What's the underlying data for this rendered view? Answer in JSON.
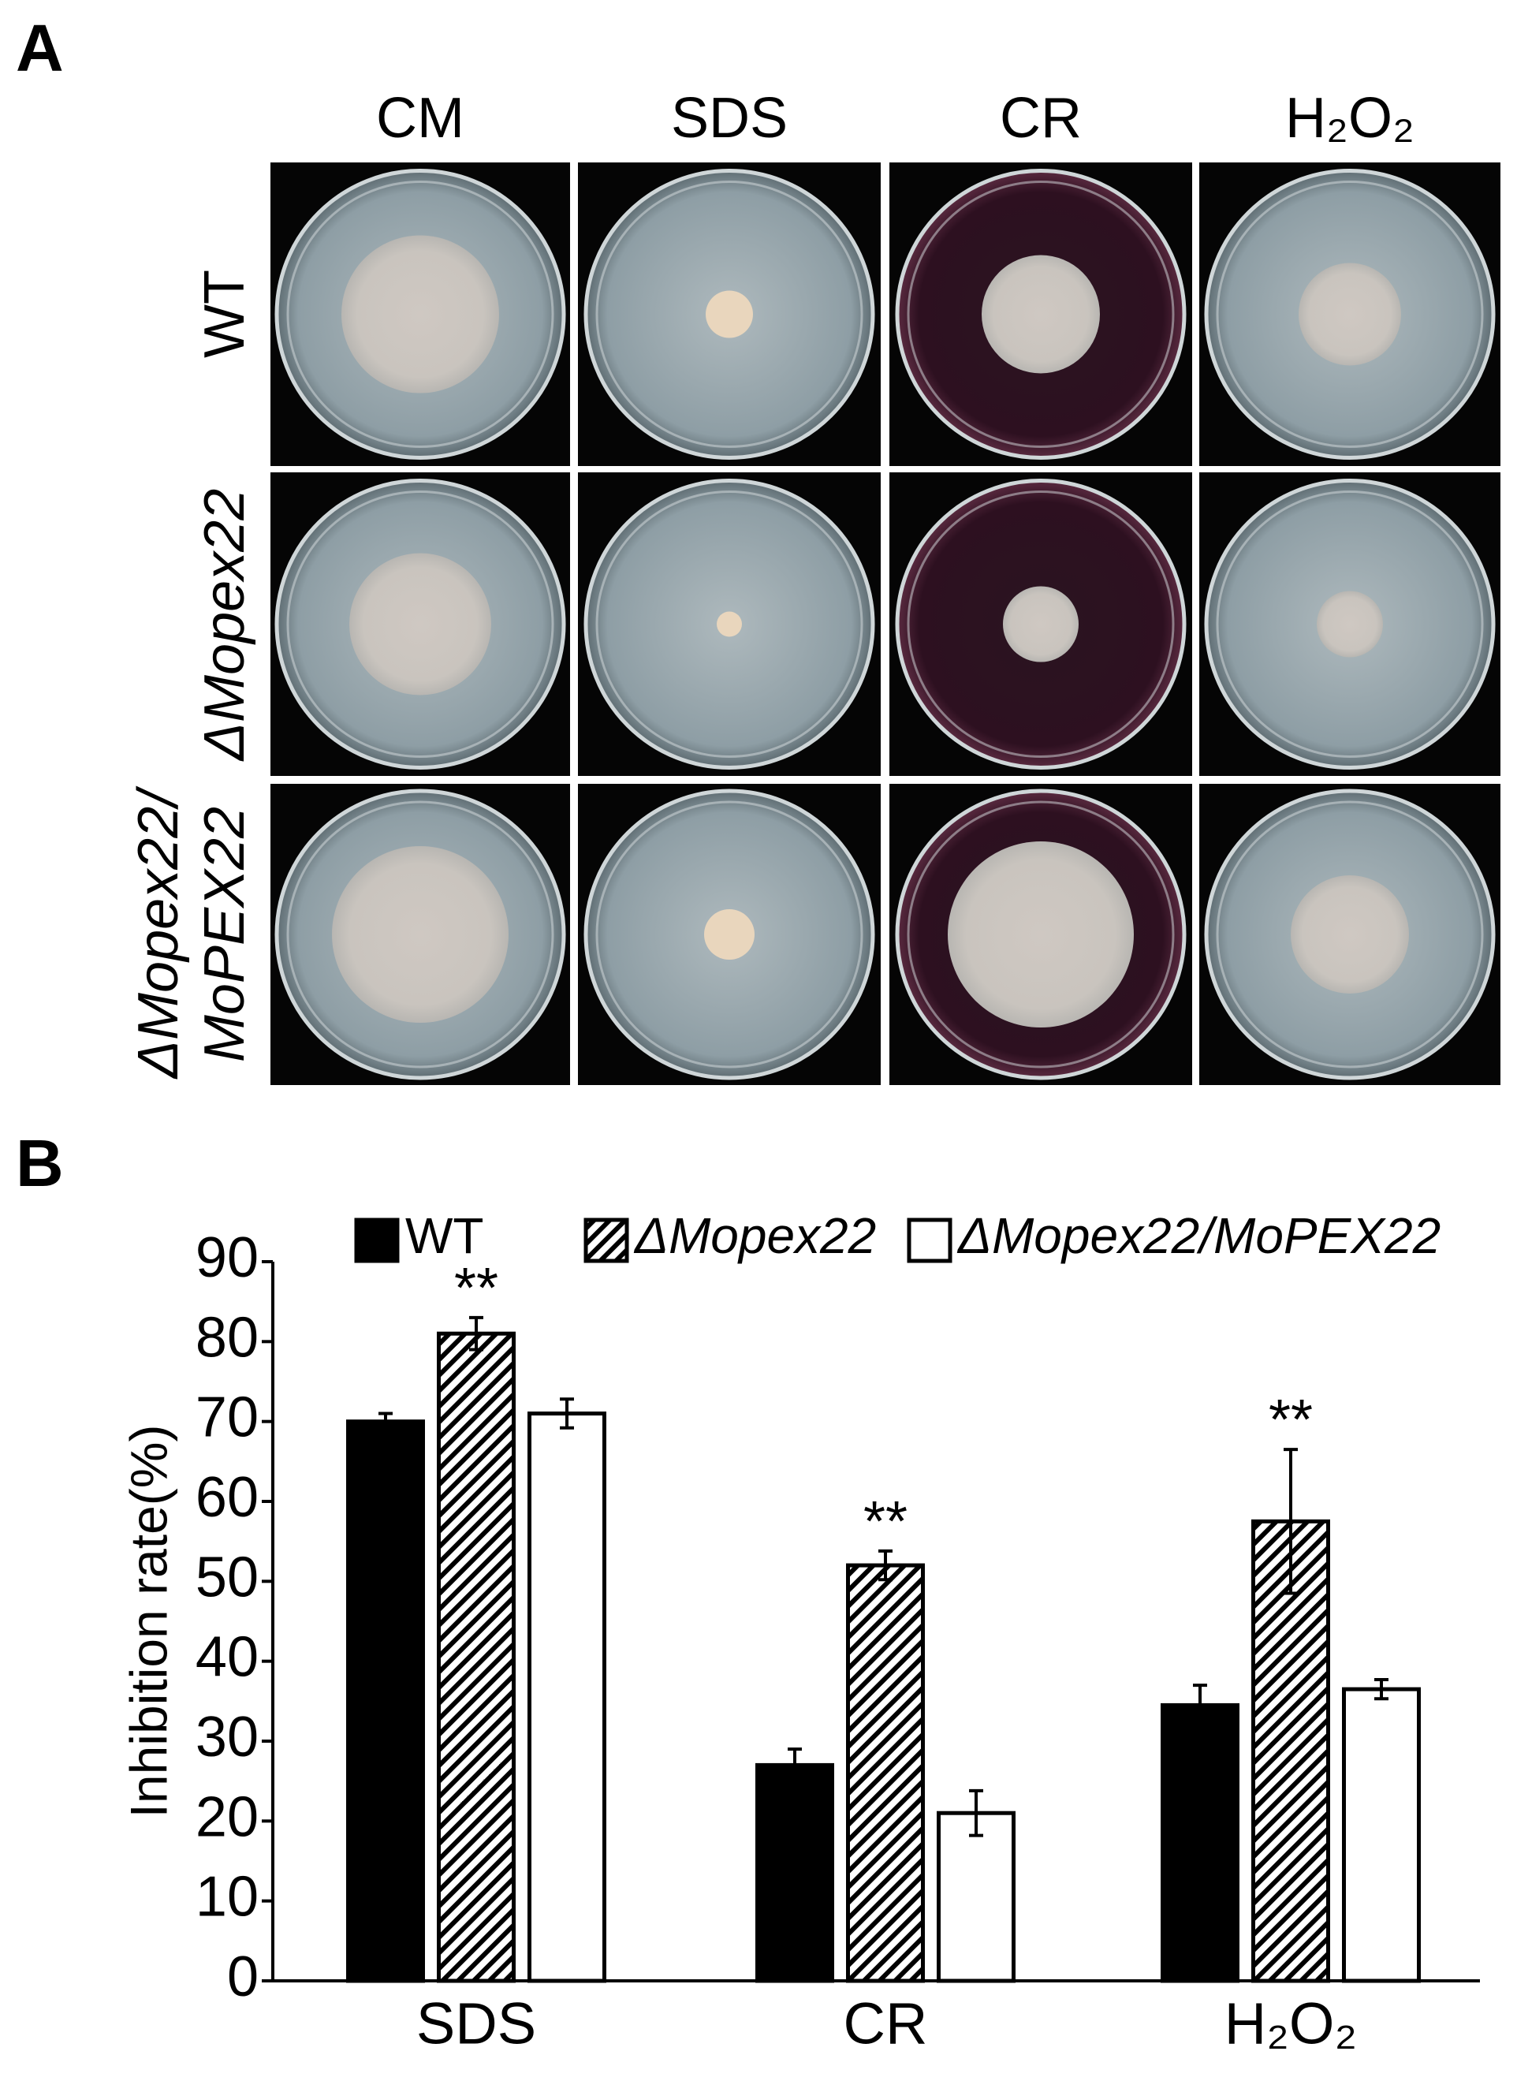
{
  "panel_a": {
    "label": "A",
    "columns": [
      "CM",
      "SDS",
      "CR",
      "H₂O₂"
    ],
    "rows": [
      [
        "WT"
      ],
      [
        "ΔMopex22"
      ],
      [
        "ΔMopex22/",
        "MoPEX22"
      ]
    ]
  },
  "chart_data": {
    "type": "bar",
    "label": "B",
    "ylabel": "Inhibition rate(%)",
    "categories": [
      "SDS",
      "CR",
      "H₂O₂"
    ],
    "series": [
      {
        "name": "WT",
        "color": "#000000",
        "fill_style": "solid",
        "values": [
          70,
          27,
          34.5
        ],
        "errors": [
          1,
          2,
          2.5
        ]
      },
      {
        "name": "ΔMopex22",
        "color": "#000000",
        "fill_style": "hatch",
        "values": [
          81,
          52,
          57.5
        ],
        "errors": [
          2,
          1.8,
          9
        ],
        "significance": [
          "**",
          "**",
          "**"
        ]
      },
      {
        "name": "ΔMopex22/MoPEX22",
        "color": "#ffffff",
        "fill_style": "none",
        "values": [
          71,
          21,
          36.5
        ],
        "errors": [
          1.8,
          2.8,
          1.2
        ]
      }
    ],
    "ylim": [
      0,
      90
    ],
    "yticks": [
      0,
      10,
      20,
      30,
      40,
      50,
      60,
      70,
      80,
      90
    ]
  }
}
